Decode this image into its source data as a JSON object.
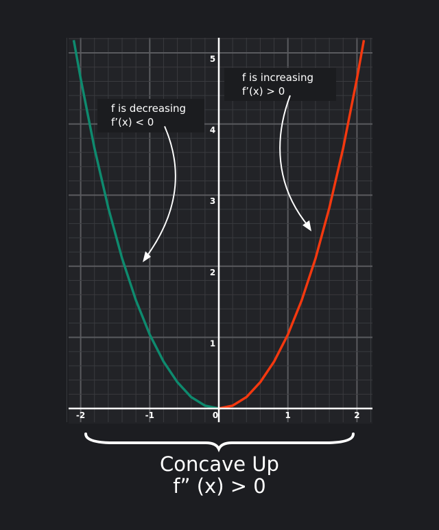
{
  "chart_data": {
    "type": "line",
    "title": "",
    "xlabel": "",
    "ylabel": "",
    "xlim": [
      -2.2,
      2.2
    ],
    "ylim": [
      0,
      5.25
    ],
    "grid": true,
    "minor_grid_step": 0.2,
    "x_ticks": [
      "-2",
      "-1",
      "0",
      "1",
      "2"
    ],
    "y_ticks": [
      "1",
      "2",
      "3",
      "4",
      "5"
    ],
    "series": [
      {
        "color": "#0e8a6e",
        "x": [
          -2.1,
          -2.0,
          -1.8,
          -1.6,
          -1.4,
          -1.2,
          -1.0,
          -0.8,
          -0.6,
          -0.4,
          -0.2,
          0.0
        ],
        "y": [
          5.18,
          4.64,
          3.66,
          2.82,
          2.11,
          1.52,
          1.04,
          0.66,
          0.37,
          0.16,
          0.04,
          0.0
        ]
      },
      {
        "color": "#f4380f",
        "x": [
          0.0,
          0.2,
          0.4,
          0.6,
          0.8,
          1.0,
          1.2,
          1.4,
          1.6,
          1.8,
          2.0,
          2.1
        ],
        "y": [
          0.0,
          0.04,
          0.16,
          0.37,
          0.66,
          1.04,
          1.52,
          2.11,
          2.82,
          3.66,
          4.64,
          5.18
        ]
      }
    ],
    "annotations": [
      {
        "line1": "f is decreasing",
        "line2": "f’(x) < 0"
      },
      {
        "line1": "f is increasing",
        "line2": "f’(x) > 0"
      }
    ],
    "caption": {
      "line1": "Concave Up",
      "line2": "f” (x) > 0"
    }
  }
}
